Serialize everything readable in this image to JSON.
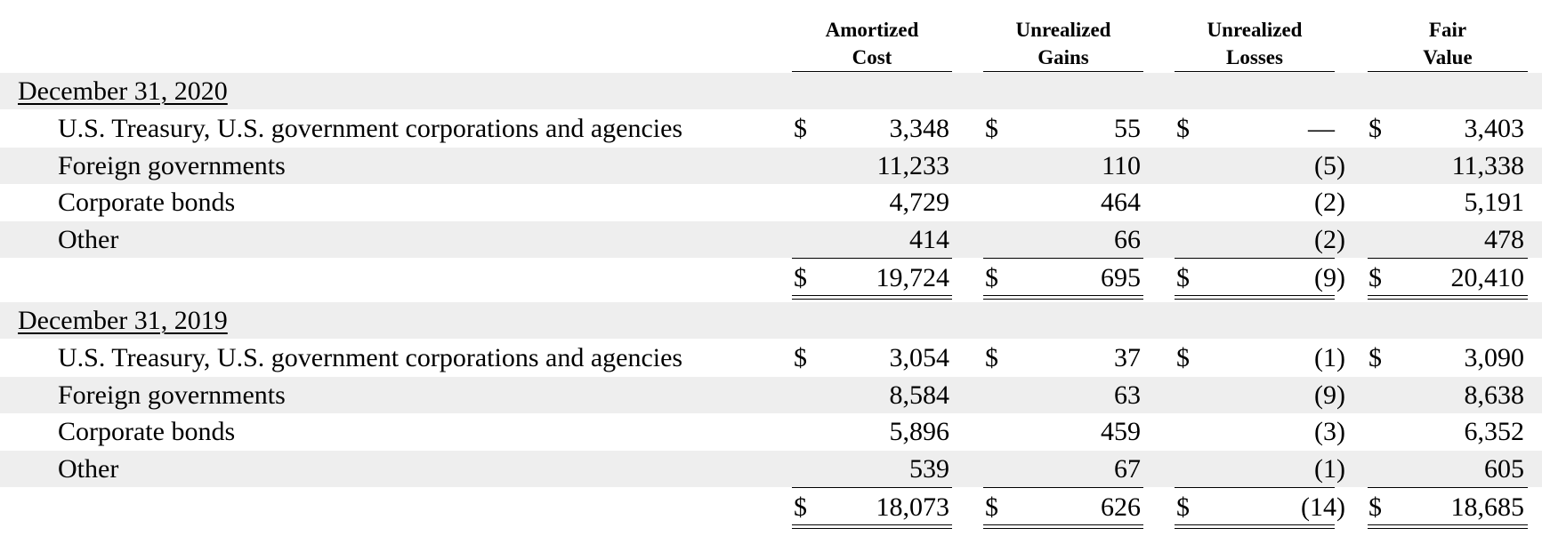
{
  "headers": [
    {
      "line1": "Amortized",
      "line2": "Cost"
    },
    {
      "line1": "Unrealized",
      "line2": "Gains"
    },
    {
      "line1": "Unrealized",
      "line2": "Losses"
    },
    {
      "line1": "Fair",
      "line2": "Value"
    }
  ],
  "currency_symbol": "$",
  "sections": [
    {
      "title": "December 31, 2020",
      "rows": [
        {
          "label": "U.S. Treasury, U.S. government corporations and agencies",
          "amortized_cost": "3,348",
          "unrealized_gains": "55",
          "unrealized_losses": "—",
          "fair_value": "3,403"
        },
        {
          "label": "Foreign governments",
          "amortized_cost": "11,233",
          "unrealized_gains": "110",
          "unrealized_losses": "(5)",
          "fair_value": "11,338"
        },
        {
          "label": "Corporate bonds",
          "amortized_cost": "4,729",
          "unrealized_gains": "464",
          "unrealized_losses": "(2)",
          "fair_value": "5,191"
        },
        {
          "label": "Other",
          "amortized_cost": "414",
          "unrealized_gains": "66",
          "unrealized_losses": "(2)",
          "fair_value": "478"
        }
      ],
      "total": {
        "amortized_cost": "19,724",
        "unrealized_gains": "695",
        "unrealized_losses": "(9)",
        "fair_value": "20,410"
      }
    },
    {
      "title": "December 31, 2019",
      "rows": [
        {
          "label": "U.S. Treasury, U.S. government corporations and agencies",
          "amortized_cost": "3,054",
          "unrealized_gains": "37",
          "unrealized_losses": "(1)",
          "fair_value": "3,090"
        },
        {
          "label": "Foreign governments",
          "amortized_cost": "8,584",
          "unrealized_gains": "63",
          "unrealized_losses": "(9)",
          "fair_value": "8,638"
        },
        {
          "label": "Corporate bonds",
          "amortized_cost": "5,896",
          "unrealized_gains": "459",
          "unrealized_losses": "(3)",
          "fair_value": "6,352"
        },
        {
          "label": "Other",
          "amortized_cost": "539",
          "unrealized_gains": "67",
          "unrealized_losses": "(1)",
          "fair_value": "605"
        }
      ],
      "total": {
        "amortized_cost": "18,073",
        "unrealized_gains": "626",
        "unrealized_losses": "(14)",
        "fair_value": "18,685"
      }
    }
  ]
}
